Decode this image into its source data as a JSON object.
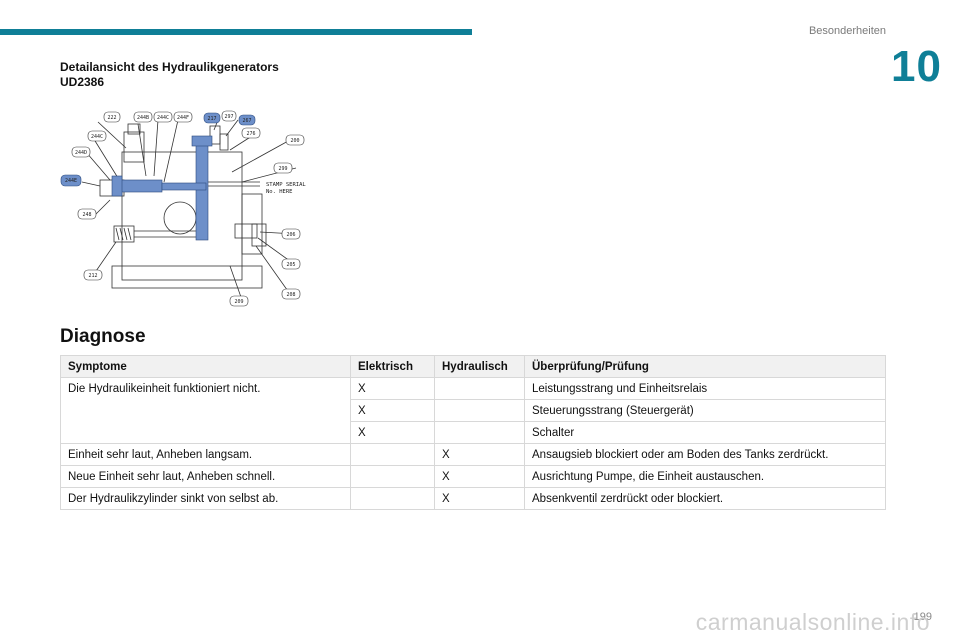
{
  "header": {
    "section_name": "Besonderheiten",
    "chapter_number": "10"
  },
  "figure": {
    "caption_line1": "Detailansicht des Hydraulikgenerators",
    "caption_line2": "UD2386",
    "callouts": [
      "222",
      "244B",
      "244C",
      "244F",
      "217",
      "297",
      "267",
      "244C",
      "244D",
      "276",
      "200",
      "299",
      "244E",
      "248",
      "212",
      "206",
      "205",
      "208",
      "209"
    ],
    "stamp_text_line1": "STAMP SERIAL",
    "stamp_text_line2": "No. HERE",
    "highlight_color": "#6d8fc9"
  },
  "section_title": "Diagnose",
  "table": {
    "headers": [
      "Symptome",
      "Elektrisch",
      "Hydraulisch",
      "Überprüfung/Prüfung"
    ],
    "group1": {
      "symptom": "Die Hydraulikeinheit funktioniert nicht.",
      "rows": [
        {
          "elektrisch": "X",
          "hydraulisch": "",
          "check": "Leistungsstrang und Einheitsrelais"
        },
        {
          "elektrisch": "X",
          "hydraulisch": "",
          "check": "Steuerungsstrang (Steuergerät)"
        },
        {
          "elektrisch": "X",
          "hydraulisch": "",
          "check": "Schalter"
        }
      ]
    },
    "rows": [
      {
        "symptom": "Einheit sehr laut, Anheben langsam.",
        "elektrisch": "",
        "hydraulisch": "X",
        "check": "Ansaugsieb blockiert oder am Boden des Tanks zerdrückt."
      },
      {
        "symptom": "Neue Einheit sehr laut, Anheben schnell.",
        "elektrisch": "",
        "hydraulisch": "X",
        "check": "Ausrichtung Pumpe, die Einheit austauschen."
      },
      {
        "symptom": "Der Hydraulikzylinder sinkt von selbst ab.",
        "elektrisch": "",
        "hydraulisch": "X",
        "check": "Absenkventil zerdrückt oder blockiert."
      }
    ]
  },
  "footer": {
    "page_number": "199",
    "watermark": "carmanualsonline.info"
  },
  "colors": {
    "accent": "#0f7f97"
  }
}
